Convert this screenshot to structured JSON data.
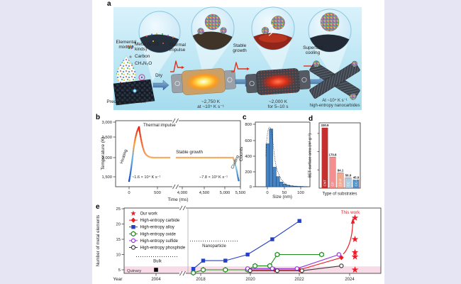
{
  "figure": {
    "background": "#e6e5f3",
    "panel_labels": {
      "a": "a",
      "b": "b",
      "c": "c",
      "d": "d",
      "e": "e"
    },
    "panel_a": {
      "elemental_mixture": "Elemental mixture",
      "legend_metal": "Metal (5–22 kinds)",
      "legend_carbon": "Carbon",
      "legend_urea": "CH₄N₂O",
      "dry": "Dry",
      "thermal_impulse": "Thermal impulse",
      "stable_growth": "Stable growth",
      "superfast_cooling": "Superfast cooling",
      "precursor": "Precursor/CNT film",
      "step1_line1": "~2,750 K",
      "step1_line2": "at ~10⁵ K s⁻¹",
      "step2_line1": "~2,000 K",
      "step2_line2": "for 5–10 s",
      "step3_line1": "At ~10⁴ K s⁻¹",
      "step3_line2": "high-entropy nanocarbides"
    }
  },
  "chart_data": [
    {
      "panel": "b",
      "type": "line",
      "xlabel": "Time (ms)",
      "ylabel": "Temperature (K)",
      "x_ticks": [
        "0",
        "500",
        "4,000",
        "4,500",
        "5,000",
        "5,500"
      ],
      "y_ticks": [
        "1,500",
        "2,000",
        "2,500",
        "3,000"
      ],
      "x_axis_break": true,
      "annotations": {
        "peak": "Thermal impulse",
        "heating": "Heating",
        "plateau": "Stable growth",
        "cooling": "Cooling",
        "heating_rate": "~1.6 × 10⁴ K s⁻¹",
        "cooling_rate": "−7.8 × 10³ K s⁻¹"
      },
      "series": [
        {
          "name": "temperature",
          "x_ms": [
            0,
            80,
            150,
            190,
            230,
            280,
            350,
            500,
            4000,
            5000,
            5150,
            5230,
            5300
          ],
          "y_K": [
            1400,
            1650,
            2300,
            2750,
            2350,
            2080,
            2000,
            2000,
            2000,
            2000,
            2000,
            1750,
            1380
          ]
        }
      ]
    },
    {
      "panel": "c",
      "type": "histogram",
      "xlabel": "Size (nm)",
      "ylabel": "Counts",
      "x_ticks": [
        "0",
        "50",
        "100"
      ],
      "y_ticks": [
        "0",
        "200",
        "400",
        "600",
        "800"
      ],
      "bin_start_nm": 2,
      "bin_width_nm": 10,
      "counts": [
        550,
        740,
        250,
        130,
        60,
        35,
        20,
        12,
        8,
        5,
        4,
        2
      ],
      "fit": "dotted distribution outline"
    },
    {
      "panel": "d",
      "type": "bar",
      "xlabel": "Type of substrates",
      "ylabel": "BET surface area (m² g⁻¹)",
      "categories": [
        "CNT",
        "CP",
        "CP-P",
        "CC",
        "CC-P"
      ],
      "values": [
        330.9,
        170.8,
        84.1,
        56.9,
        45.9
      ],
      "value_labels": [
        "330.9",
        "170.8",
        "84.1",
        "56.9",
        "45.9"
      ],
      "bar_colors": [
        "#c62f2f",
        "#f58f8f",
        "#f3a98e",
        "#a9cee2",
        "#4b90c8"
      ]
    },
    {
      "panel": "e",
      "type": "scatter",
      "xlabel": "Year",
      "ylabel": "Number of metal elements",
      "x_ticks": [
        "2004",
        "2018",
        "2020",
        "2022",
        "2024"
      ],
      "y_ticks": [
        "5",
        "10",
        "15",
        "20",
        "25"
      ],
      "x_axis_break": true,
      "band": {
        "label": "Quinary",
        "value": 5,
        "color": "#f9dbe7"
      },
      "annotations": {
        "bulk": "Bulk",
        "nanoparticle": "Nanoparticle",
        "this_work": "This work"
      },
      "series": [
        {
          "name": "Our work",
          "marker": "star",
          "color": "#ec1c24",
          "line": false,
          "points": [
            [
              2024.25,
              22
            ],
            [
              2024.25,
              15
            ],
            [
              2024.25,
              10.7
            ],
            [
              2024.25,
              9.3
            ],
            [
              2024.25,
              5
            ]
          ]
        },
        {
          "name": "High-entropy carbide",
          "marker": "diamond",
          "color": "#ec1c24",
          "line": true,
          "points": [
            [
              2019.9,
              5
            ],
            [
              2021,
              5
            ],
            [
              2022,
              5
            ],
            [
              2023.7,
              9
            ]
          ]
        },
        {
          "name": "High-entropy alloy",
          "marker": "square",
          "color": "#2440c8",
          "line": true,
          "points": [
            [
              2017.7,
              5.3
            ],
            [
              2018.1,
              8
            ],
            [
              2019,
              8
            ],
            [
              2019.9,
              10
            ],
            [
              2020.9,
              15
            ],
            [
              2022,
              21
            ]
          ]
        },
        {
          "name": "High-entropy oxide",
          "marker": "hexagon",
          "color": "#1e8c1e",
          "line": true,
          "points": [
            [
              2017.7,
              4
            ],
            [
              2018.1,
              5
            ],
            [
              2019,
              5
            ],
            [
              2019.9,
              5
            ],
            [
              2020.2,
              6.3
            ],
            [
              2020.8,
              6.3
            ],
            [
              2021.1,
              10
            ],
            [
              2022.9,
              10
            ]
          ]
        },
        {
          "name": "High-entropy sulfide",
          "marker": "circle",
          "color": "#9233e0",
          "line": true,
          "points": [
            [
              2019.9,
              5.4
            ],
            [
              2020.9,
              5.4
            ],
            [
              2021.9,
              5.4
            ],
            [
              2023.6,
              10
            ]
          ]
        },
        {
          "name": "High-entropy phosphide",
          "marker": "circle",
          "color": "#3c3c3c",
          "line": true,
          "points": [
            [
              2020,
              4.7
            ],
            [
              2021.1,
              4.7
            ],
            [
              2022.1,
              4.7
            ],
            [
              2023.7,
              6.3
            ]
          ]
        }
      ],
      "bulk_marker": {
        "marker": "square",
        "color": "#000000",
        "point": [
          2004,
          5
        ]
      }
    }
  ]
}
